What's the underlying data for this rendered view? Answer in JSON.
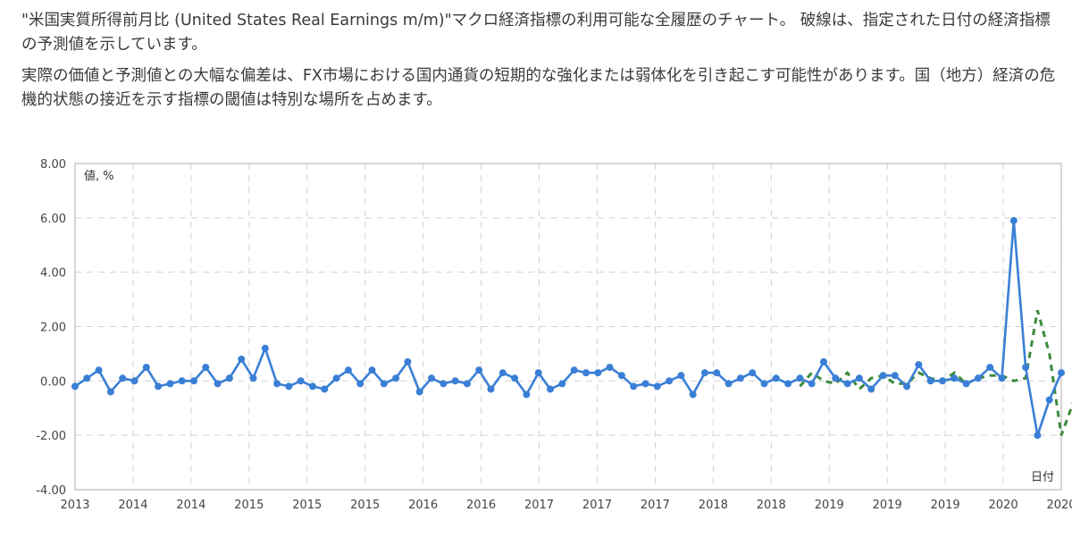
{
  "description": {
    "paragraph1": "\"米国実質所得前月比 (United States Real Earnings m/m)\"マクロ経済指標の利用可能な全履歴のチャート。 破線は、指定された日付の経済指標の予測値を示しています。",
    "paragraph2": "実際の価値と予測値との大幅な偏差は、FX市場における国内通貨の短期的な強化または弱体化を引き起こす可能性があります。国（地方）経済の危機的状態の接近を示す指標の閾値は特別な場所を占めます。"
  },
  "colors": {
    "actual": "#3a7fd5",
    "forecast": "#3c8a3c",
    "grid": "#d3d3d3",
    "frame": "#c8c8c8"
  },
  "chart_data": {
    "type": "line",
    "ylabel": "値, %",
    "xlabel": "日付",
    "ylim": [
      -4,
      8
    ],
    "y_ticks": [
      "8.00",
      "6.00",
      "4.00",
      "2.00",
      "0.00",
      "-2.00",
      "-4.00"
    ],
    "x_ticks": [
      "2013",
      "2014",
      "2014",
      "2015",
      "2015",
      "2015",
      "2016",
      "2016",
      "2017",
      "2017",
      "2017",
      "2018",
      "2018",
      "2019",
      "2019",
      "2019",
      "2020",
      "2020"
    ],
    "grid": true,
    "series": [
      {
        "values": [
          -0.2,
          0.1,
          0.4,
          -0.4,
          0.1,
          0.0,
          0.5,
          -0.2,
          -0.1,
          0.0,
          0.0,
          0.5,
          -0.1,
          0.1,
          0.8,
          0.1,
          1.2,
          -0.1,
          -0.2,
          0.0,
          -0.2,
          -0.3,
          0.1,
          0.4,
          -0.1,
          0.4,
          -0.1,
          0.1,
          0.7,
          -0.4,
          0.1,
          -0.1,
          0.0,
          -0.1,
          0.4,
          -0.3,
          0.3,
          0.1,
          -0.5,
          0.3,
          -0.3,
          -0.1,
          0.4,
          0.3,
          0.3,
          0.5,
          0.2,
          -0.2,
          -0.1,
          -0.2,
          0.0,
          0.2,
          -0.5,
          0.3,
          0.3,
          -0.1,
          0.1,
          0.3,
          -0.1,
          0.1,
          -0.1,
          0.1,
          -0.1,
          0.7,
          0.1,
          -0.1,
          0.1,
          -0.3,
          0.2,
          0.2,
          -0.2,
          0.6,
          0.0,
          0.0,
          0.1,
          -0.1,
          0.1,
          0.5,
          0.1,
          5.9,
          0.5,
          -2.0,
          -0.7,
          0.3
        ]
      },
      {
        "dashed": true,
        "start_index": 61,
        "values": [
          -0.2,
          0.3,
          0.0,
          -0.1,
          0.3,
          -0.3,
          0.1,
          0.2,
          -0.1,
          -0.1,
          0.3,
          0.1,
          0.0,
          0.3,
          -0.1,
          0.1,
          0.2,
          0.2,
          0.0,
          0.1,
          2.6,
          1.0,
          -2.0,
          -0.8
        ]
      }
    ]
  }
}
